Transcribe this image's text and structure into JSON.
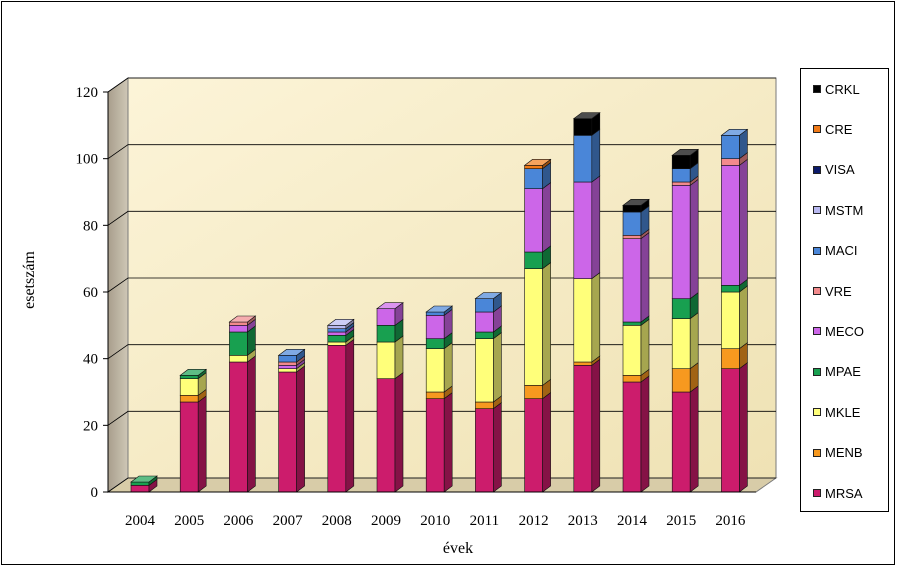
{
  "chart_data": {
    "type": "bar",
    "stacked": true,
    "style": "3d-column",
    "categories": [
      "2004",
      "2005",
      "2006",
      "2007",
      "2008",
      "2009",
      "2010",
      "2011",
      "2012",
      "2013",
      "2014",
      "2015",
      "2016"
    ],
    "xlabel": "évek",
    "ylabel": "esetszám",
    "ylim": [
      0,
      120
    ],
    "yticks": [
      "0",
      "20",
      "40",
      "60",
      "80",
      "100",
      "120"
    ],
    "grid": true,
    "legend_position": "right",
    "series": [
      {
        "name": "MRSA",
        "color": "#CC1C6C",
        "values": [
          2,
          27,
          39,
          36,
          44,
          34,
          28,
          25,
          28,
          38,
          33,
          30,
          37
        ]
      },
      {
        "name": "MENB",
        "color": "#F7991F",
        "values": [
          0,
          2,
          0,
          0,
          0,
          0,
          2,
          2,
          4,
          1,
          2,
          7,
          6
        ]
      },
      {
        "name": "MKLE",
        "color": "#FFFF7A",
        "values": [
          0,
          5,
          2,
          1,
          1,
          11,
          13,
          19,
          35,
          25,
          15,
          15,
          17
        ]
      },
      {
        "name": "MPAE",
        "color": "#18A050",
        "values": [
          1,
          1,
          7,
          0,
          2,
          5,
          3,
          2,
          5,
          0,
          1,
          6,
          2
        ]
      },
      {
        "name": "MECO",
        "color": "#CC66E8",
        "values": [
          0,
          0,
          2,
          1,
          1,
          5,
          7,
          6,
          19,
          29,
          25,
          34,
          36
        ]
      },
      {
        "name": "VRE",
        "color": "#F28A8C",
        "values": [
          0,
          0,
          1,
          1,
          0,
          0,
          0,
          0,
          0,
          0,
          1,
          1,
          2
        ]
      },
      {
        "name": "MACI",
        "color": "#4A86D8",
        "values": [
          0,
          0,
          0,
          2,
          1,
          0,
          1,
          4,
          6,
          14,
          7,
          4,
          7
        ]
      },
      {
        "name": "MSTM",
        "color": "#B8B8F0",
        "values": [
          0,
          0,
          0,
          0,
          1,
          0,
          0,
          0,
          0,
          0,
          0,
          0,
          0
        ]
      },
      {
        "name": "VISA",
        "color": "#0B1A6A",
        "values": [
          0,
          0,
          0,
          0,
          0,
          0,
          0,
          0,
          0,
          0,
          0,
          0,
          0
        ]
      },
      {
        "name": "CRE",
        "color": "#F07A18",
        "values": [
          0,
          0,
          0,
          0,
          0,
          0,
          0,
          0,
          1,
          0,
          0,
          0,
          0
        ]
      },
      {
        "name": "CRKL",
        "color": "#000000",
        "values": [
          0,
          0,
          0,
          0,
          0,
          0,
          0,
          0,
          0,
          5,
          2,
          4,
          0
        ]
      }
    ],
    "wall_color": "#FAF0C8",
    "floor_color": "#D8CCA8",
    "side_wall_color": "#B8B0A0"
  }
}
